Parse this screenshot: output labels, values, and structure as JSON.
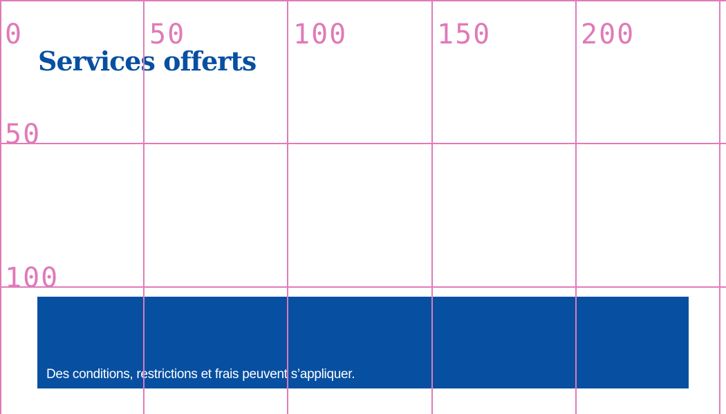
{
  "header": {
    "title": "Services offerts"
  },
  "banner": {
    "disclaimer": "Des conditions, restrictions et frais peuvent s’appliquer."
  },
  "grid_overlay": {
    "x_labels": [
      "0",
      "50",
      "100",
      "150",
      "200"
    ],
    "y_labels": [
      "50",
      "100"
    ],
    "color": "#e07ab8"
  },
  "colors": {
    "brand_blue": "#074fa1"
  }
}
